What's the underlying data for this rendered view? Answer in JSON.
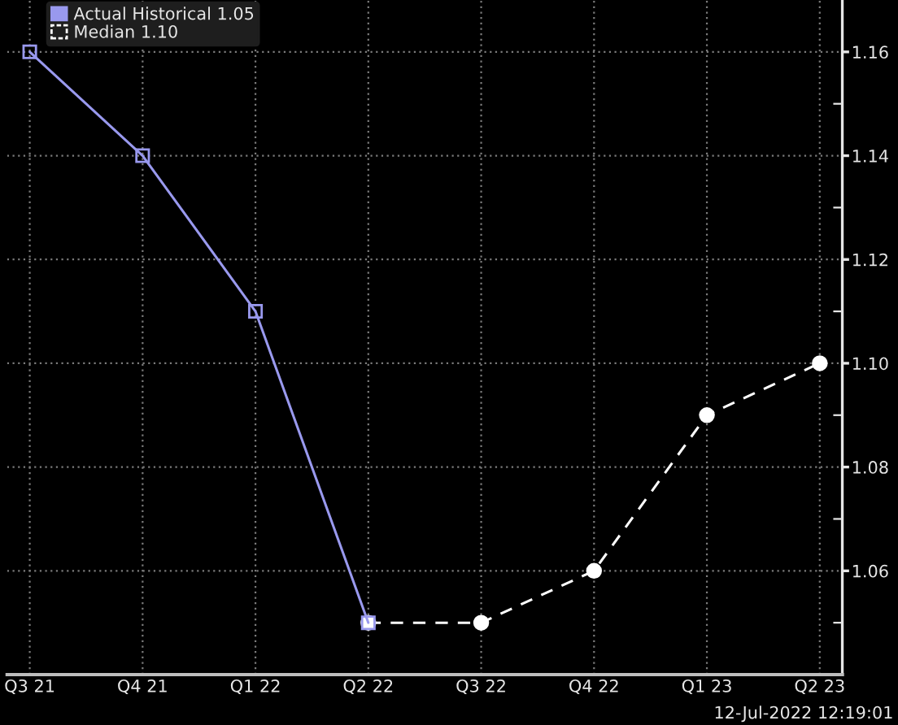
{
  "chart_data": {
    "type": "line",
    "categories": [
      "Q3 21",
      "Q4 21",
      "Q1 22",
      "Q2 22",
      "Q3 22",
      "Q4 22",
      "Q1 23",
      "Q2 23"
    ],
    "series": [
      {
        "name": "Actual Historical 1.05",
        "color": "#9999ee",
        "values": [
          1.16,
          1.14,
          1.11,
          1.05,
          null,
          null,
          null,
          null
        ],
        "marker": "square",
        "line_style": "solid"
      },
      {
        "name": "Median 1.10",
        "color": "#ffffff",
        "values": [
          null,
          null,
          null,
          1.05,
          1.05,
          1.06,
          1.09,
          1.1
        ],
        "marker": "circle",
        "line_style": "dashed"
      }
    ],
    "ylim": [
      1.04,
      1.17
    ],
    "yticks": [
      {
        "value": 1.05,
        "label": null
      },
      1.06,
      {
        "value": 1.07,
        "label": null
      },
      1.08,
      {
        "value": 1.09,
        "label": null
      },
      {
        "value": 1.1,
        "label": "1.10"
      },
      {
        "value": 1.11,
        "label": null
      },
      1.12,
      {
        "value": 1.13,
        "label": null
      },
      1.14,
      {
        "value": 1.15,
        "label": null
      },
      1.16
    ],
    "grid": true,
    "legend": "top left",
    "annotations": [
      "12-Jul-2022 12:19:01"
    ]
  }
}
